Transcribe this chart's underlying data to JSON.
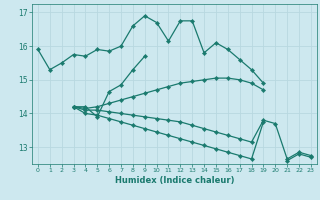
{
  "xlabel": "Humidex (Indice chaleur)",
  "ylabel": "",
  "background_color": "#cde8ef",
  "line_color": "#1a7a6e",
  "grid_color": "#b8d8e0",
  "x_values": [
    0,
    1,
    2,
    3,
    4,
    5,
    6,
    7,
    8,
    9,
    10,
    11,
    12,
    13,
    14,
    15,
    16,
    17,
    18,
    19,
    20,
    21,
    22,
    23
  ],
  "series": [
    [
      15.9,
      15.3,
      15.5,
      15.75,
      15.7,
      15.9,
      15.85,
      16.0,
      16.6,
      16.9,
      16.7,
      16.15,
      16.75,
      16.75,
      15.8,
      16.1,
      15.9,
      15.6,
      15.3,
      14.9,
      null,
      null,
      null,
      null
    ],
    [
      null,
      null,
      null,
      14.2,
      14.2,
      13.9,
      14.65,
      14.85,
      15.3,
      15.7,
      null,
      null,
      null,
      null,
      null,
      null,
      null,
      null,
      null,
      null,
      null,
      null,
      null,
      null
    ],
    [
      null,
      null,
      null,
      14.2,
      14.15,
      14.2,
      14.3,
      14.4,
      14.5,
      14.6,
      14.7,
      14.8,
      14.9,
      14.95,
      15.0,
      15.05,
      15.05,
      15.0,
      14.9,
      14.7,
      null,
      null,
      null,
      null
    ],
    [
      null,
      null,
      null,
      14.2,
      14.1,
      14.1,
      14.05,
      14.0,
      13.95,
      13.9,
      13.85,
      13.8,
      13.75,
      13.65,
      13.55,
      13.45,
      13.35,
      13.25,
      13.15,
      13.8,
      13.7,
      12.65,
      12.85,
      12.75
    ],
    [
      null,
      null,
      null,
      14.2,
      14.0,
      13.95,
      13.85,
      13.75,
      13.65,
      13.55,
      13.45,
      13.35,
      13.25,
      13.15,
      13.05,
      12.95,
      12.85,
      12.75,
      12.65,
      13.75,
      null,
      12.6,
      12.8,
      12.7
    ]
  ],
  "ylim": [
    12.5,
    17.25
  ],
  "xlim": [
    -0.5,
    23.5
  ],
  "yticks": [
    13,
    14,
    15,
    16,
    17
  ],
  "xticks": [
    0,
    1,
    2,
    3,
    4,
    5,
    6,
    7,
    8,
    9,
    10,
    11,
    12,
    13,
    14,
    15,
    16,
    17,
    18,
    19,
    20,
    21,
    22,
    23
  ],
  "marker": "D",
  "markersize": 2.2,
  "linewidth": 0.9
}
